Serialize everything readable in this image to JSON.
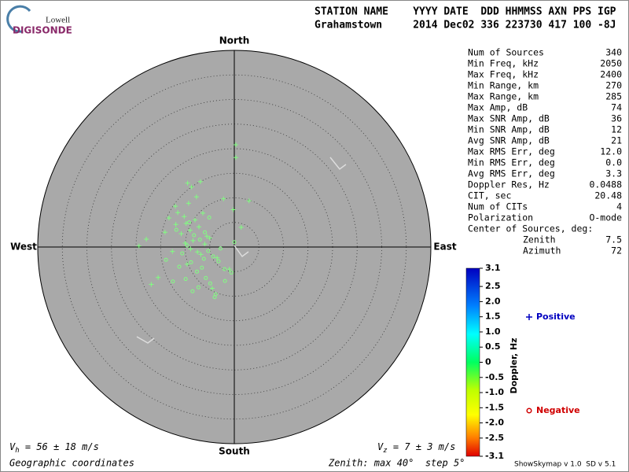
{
  "logo": {
    "top": "Lowell",
    "bottom": "DIGISONDE"
  },
  "header": {
    "labels": "STATION NAME    YYYY DATE  DDD HHMMSS AXN PPS IGP",
    "values": "Grahamstown     2014 Dec02 336 223730 417 100 -8J"
  },
  "stats": {
    "rows": [
      [
        "Num of Sources",
        "340"
      ],
      [
        "Min Freq, kHz",
        "2050"
      ],
      [
        "Max Freq, kHz",
        "2400"
      ],
      [
        "Min Range, km",
        "270"
      ],
      [
        "Max Range, km",
        "285"
      ],
      [
        "Max Amp, dB",
        "74"
      ],
      [
        "Max SNR Amp, dB",
        "36"
      ],
      [
        "Min SNR Amp, dB",
        "12"
      ],
      [
        "Avg SNR Amp, dB",
        "21"
      ],
      [
        "Max RMS Err, deg",
        "12.0"
      ],
      [
        "Min RMS Err, deg",
        "0.0"
      ],
      [
        "Avg RMS Err, deg",
        "3.3"
      ],
      [
        "Doppler Res, Hz",
        "0.0488"
      ],
      [
        "CIT, sec",
        "20.48"
      ],
      [
        "Num of CITs",
        "4"
      ],
      [
        "Polarization",
        "O-mode"
      ]
    ],
    "center_title": "Center of Sources, deg:",
    "center_rows": [
      [
        "Zenith",
        "7.5"
      ],
      [
        "Azimuth",
        "72"
      ]
    ]
  },
  "chart_data": {
    "type": "skymap",
    "directions": {
      "north": "North",
      "south": "South",
      "east": "East",
      "west": "West"
    },
    "xlim": [
      -40,
      40
    ],
    "ylim": [
      -40,
      40
    ],
    "rlim": [
      0,
      40
    ],
    "rticks": [
      5,
      10,
      15,
      20,
      25,
      30,
      35
    ],
    "series": [
      {
        "name": "Positive",
        "color": "#80ff80",
        "legend_color": "#0000c0",
        "x": [
          0.3,
          0.3,
          3.0,
          -17.9,
          -19.4,
          -9.5,
          -8.7,
          -6.9,
          -12.0,
          -11.5,
          -10.2,
          -9.8,
          -8.0,
          -7.2,
          -9.0,
          -10.8,
          -11.9,
          -6.4,
          -5.6,
          -8.4,
          -9.3,
          -7.7,
          -13.3,
          -14.1,
          -10.0,
          -8.9,
          -7.5,
          -6.0,
          -5.0,
          -2.2,
          -0.2,
          1.4,
          -3.5,
          -15.5,
          -16.9,
          -9.6,
          -4.5,
          -1.0,
          -6.8,
          -12.6
        ],
        "values": [
          20.8,
          18.2,
          9.4,
          1.6,
          0.2,
          13.0,
          12.2,
          13.3,
          8.3,
          7.0,
          6.2,
          4.8,
          5.5,
          4.1,
          3.4,
          2.7,
          4.6,
          6.9,
          2.2,
          1.3,
          8.9,
          10.2,
          5.9,
          3.0,
          0.8,
          -0.4,
          -1.0,
          0.6,
          1.8,
          9.8,
          7.6,
          4.0,
          -2.2,
          -6.2,
          -7.6,
          -3.5,
          -8.4,
          -4.5,
          -1.5,
          -0.9
        ]
      },
      {
        "name": "Negative",
        "color": "#80ff80",
        "legend_color": "#d00000",
        "x": [
          -8.2,
          -7.0,
          -9.6,
          -10.6,
          -6.2,
          -5.3,
          -8.8,
          -11.2,
          -7.6,
          -6.6,
          -4.3,
          -3.2,
          -2.0,
          -9.9,
          -12.5,
          -5.8,
          -4.9,
          -7.3,
          -8.5,
          -3.8,
          -1.9,
          -0.6,
          -13.9,
          -11.8,
          -6.0,
          -2.8,
          -9.2,
          -5.1,
          0.0,
          -4.0
        ],
        "values": [
          2.4,
          1.5,
          0.3,
          -1.3,
          -2.4,
          -0.8,
          -3.1,
          -4.0,
          -5.0,
          -4.2,
          -1.9,
          -2.9,
          -4.5,
          -6.5,
          -7.0,
          -6.3,
          -7.4,
          -8.2,
          -9.0,
          -9.6,
          -6.9,
          -5.2,
          -2.6,
          3.5,
          3.0,
          -0.3,
          5.0,
          6.0,
          1.0,
          -10.2
        ]
      }
    ],
    "colorbar": {
      "label": "Doppler, Hz",
      "clim": [
        -3.1,
        3.1
      ],
      "cticks": [
        3.1,
        2.5,
        {
          "value": 2,
          "label": "2.0"
        },
        1.5,
        {
          "value": 1,
          "label": "1.0"
        },
        0.5,
        0,
        -0.5,
        {
          "value": -1,
          "label": "-1.0"
        },
        -1.5,
        {
          "value": -2,
          "label": "-2.0"
        },
        -2.5,
        -3.1
      ]
    },
    "vh": {
      "symbol": "V",
      "sub": "h",
      "text": " = 56 ± 18 m/s"
    },
    "vz": {
      "symbol": "V",
      "sub": "z",
      "text": " = 7 ± 3 m/s"
    },
    "coords": "Geographic coordinates",
    "zenith_note": "Zenith: max 40°  step 5°",
    "version": "ShowSkymap v 1.0  SD v 5.1"
  }
}
